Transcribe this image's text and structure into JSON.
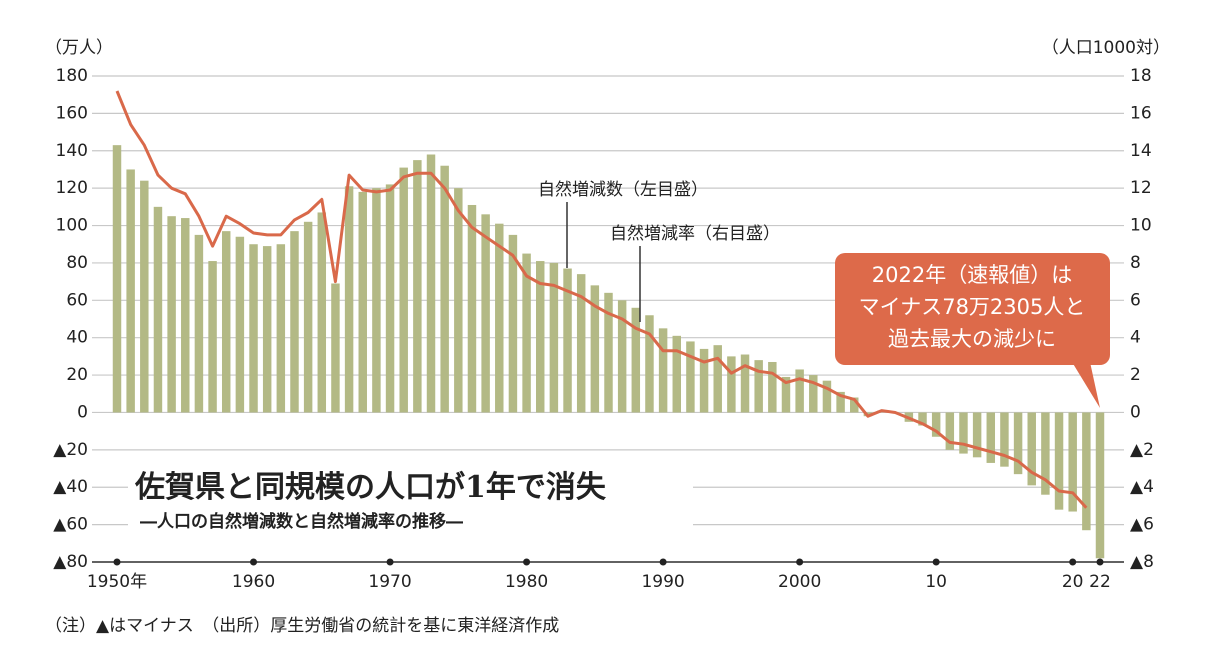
{
  "chart_data": {
    "type": "bar+line",
    "title": "佐賀県と同規模の人口が1年で消失",
    "subtitle": "―人口の自然増減数と自然増減率の推移―",
    "ylabel": "（万人）",
    "y2label": "（人口1000対）",
    "note": "（注）▲はマイナス　（出所）厚生労働省の統計を基に東洋経済作成",
    "annotations": [
      "自然増減数（左目盛）",
      "自然増減率（右目盛）"
    ],
    "callout": [
      "2022年（速報値）は",
      "マイナス78万2305人と",
      "過去最大の減少に"
    ],
    "x": [
      1950,
      1951,
      1952,
      1953,
      1954,
      1955,
      1956,
      1957,
      1958,
      1959,
      1960,
      1961,
      1962,
      1963,
      1964,
      1965,
      1966,
      1967,
      1968,
      1969,
      1970,
      1971,
      1972,
      1973,
      1974,
      1975,
      1976,
      1977,
      1978,
      1979,
      1980,
      1981,
      1982,
      1983,
      1984,
      1985,
      1986,
      1987,
      1988,
      1989,
      1990,
      1991,
      1992,
      1993,
      1994,
      1995,
      1996,
      1997,
      1998,
      1999,
      2000,
      2001,
      2002,
      2003,
      2004,
      2005,
      2006,
      2007,
      2008,
      2009,
      2010,
      2011,
      2012,
      2013,
      2014,
      2015,
      2016,
      2017,
      2018,
      2019,
      2020,
      2021,
      2022
    ],
    "xlim": [
      1950,
      2022
    ],
    "xticks": [
      {
        "value": 1950,
        "label": "1950年"
      },
      1960,
      1970,
      1980,
      1990,
      2000,
      {
        "value": 2010,
        "label": "10"
      },
      {
        "value": 2020,
        "label": "20"
      },
      {
        "value": 2022,
        "label": "22"
      }
    ],
    "ylim": [
      -80,
      180
    ],
    "yticks": [
      180,
      160,
      140,
      120,
      100,
      80,
      60,
      40,
      20,
      0,
      {
        "value": -20,
        "label": "▲20"
      },
      {
        "value": -40,
        "label": "▲40"
      },
      {
        "value": -60,
        "label": "▲60"
      },
      {
        "value": -80,
        "label": "▲80"
      }
    ],
    "y2lim": [
      -8,
      18
    ],
    "y2ticks": [
      18,
      16,
      14,
      12,
      10,
      8,
      6,
      4,
      2,
      0,
      {
        "value": -2,
        "label": "▲2"
      },
      {
        "value": -4,
        "label": "▲4"
      },
      {
        "value": -6,
        "label": "▲6"
      },
      {
        "value": -8,
        "label": "▲8"
      }
    ],
    "grid": true,
    "series": [
      {
        "name": "自然増減数",
        "type": "bar",
        "color": "#b3b985",
        "values": [
          143,
          130,
          124,
          110,
          105,
          104,
          95,
          81,
          97,
          94,
          90,
          89,
          90,
          97,
          102,
          107,
          69,
          121,
          118,
          120,
          122,
          131,
          135,
          138,
          132,
          120,
          111,
          106,
          101,
          95,
          85,
          81,
          80,
          77,
          74,
          68,
          64,
          60,
          56,
          52,
          45,
          41,
          38,
          34,
          36,
          30,
          31,
          28,
          27,
          19,
          23,
          20,
          17,
          11,
          8,
          -2,
          1,
          -0.2,
          -5,
          -7,
          -13,
          -20,
          -22,
          -24,
          -27,
          -29,
          -33,
          -39,
          -44,
          -52,
          -53,
          -63,
          -78
        ]
      },
      {
        "name": "自然増減率",
        "type": "line",
        "axis": "y2",
        "color": "#d9694a",
        "values": [
          17.2,
          15.4,
          14.3,
          12.7,
          12.0,
          11.7,
          10.5,
          8.9,
          10.5,
          10.1,
          9.6,
          9.5,
          9.5,
          10.3,
          10.7,
          11.4,
          7.0,
          12.7,
          11.9,
          11.8,
          11.9,
          12.6,
          12.8,
          12.8,
          12.0,
          10.8,
          9.9,
          9.4,
          8.9,
          8.4,
          7.3,
          6.9,
          6.8,
          6.5,
          6.2,
          5.7,
          5.3,
          5.0,
          4.5,
          4.2,
          3.3,
          3.3,
          3.0,
          2.7,
          2.9,
          2.1,
          2.5,
          2.2,
          2.1,
          1.6,
          1.8,
          1.6,
          1.3,
          0.9,
          0.7,
          -0.2,
          0.1,
          0.0,
          -0.3,
          -0.6,
          -1.0,
          -1.6,
          -1.7,
          -1.9,
          -2.1,
          -2.3,
          -2.6,
          -3.2,
          -3.6,
          -4.2,
          -4.3,
          -5.1,
          null
        ]
      }
    ]
  }
}
